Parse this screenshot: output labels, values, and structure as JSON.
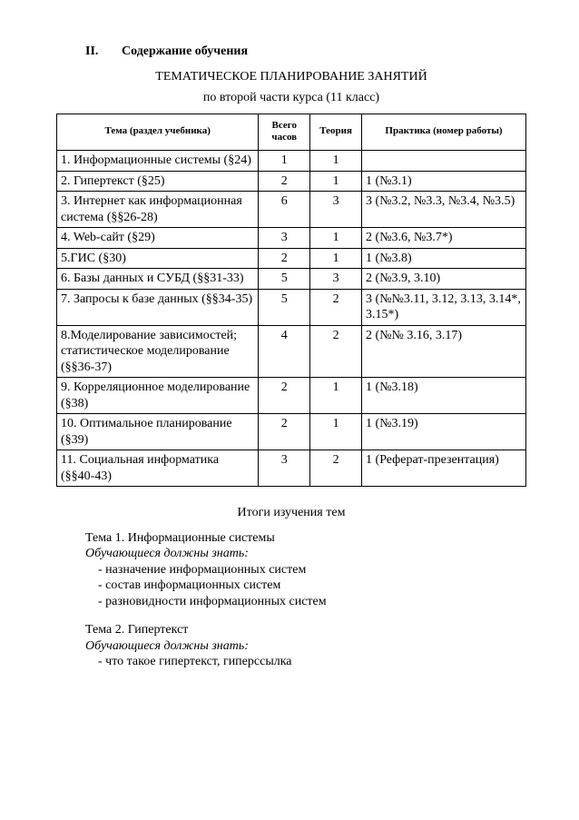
{
  "heading": {
    "num": "II.",
    "text": "Содержание обучения"
  },
  "title1": "ТЕМАТИЧЕСКОЕ ПЛАНИРОВАНИЕ ЗАНЯТИЙ",
  "title2": "по второй части курса (11 класс)",
  "table": {
    "headers": {
      "c1": "Тема (раздел учебника)",
      "c2": "Всего часов",
      "c3": "Теория",
      "c4": "Практика (номер работы)"
    },
    "rows": [
      {
        "c1": "1. Информационные системы (§24)",
        "c2": "1",
        "c3": "1",
        "c4": ""
      },
      {
        "c1": "2. Гипертекст (§25)",
        "c2": "2",
        "c3": "1",
        "c4": "1 (№3.1)"
      },
      {
        "c1": "3. Интернет как информационная система (§§26-28)",
        "c2": "6",
        "c3": "3",
        "c4": "3 (№3.2, №3.3, №3.4, №3.5)"
      },
      {
        "c1": "4. Web-сайт (§29)",
        "c2": "3",
        "c3": "1",
        "c4": "2 (№3.6, №3.7*)"
      },
      {
        "c1": "5.ГИС (§30)",
        "c2": "2",
        "c3": "1",
        "c4": "1 (№3.8)"
      },
      {
        "c1": "6. Базы данных и СУБД (§§31-33)",
        "c2": "5",
        "c3": "3",
        "c4": "2 (№3.9, 3.10)"
      },
      {
        "c1": "7. Запросы к базе данных (§§34-35)",
        "c2": "5",
        "c3": "2",
        "c4": "3 (№№3.11, 3.12, 3.13, 3.14*, 3.15*)"
      },
      {
        "c1": "8.Моделирование зависимостей; статистическое моделирование (§§36-37)",
        "c2": "4",
        "c3": "2",
        "c4": "2 (№№ 3.16, 3.17)"
      },
      {
        "c1": "9. Корреляционное моделирование (§38)",
        "c2": "2",
        "c3": "1",
        "c4": "1 (№3.18)"
      },
      {
        "c1": "10. Оптимальное планирование (§39)",
        "c2": "2",
        "c3": "1",
        "c4": "1 (№3.19)"
      },
      {
        "c1": "11. Социальная информатика (§§40-43)",
        "c2": "3",
        "c3": "2",
        "c4": "1 (Реферат-презентация)"
      }
    ]
  },
  "results_title": "Итоги изучения тем",
  "topics": [
    {
      "title": "Тема 1. Информационные системы",
      "know": "Обучающиеся должны знать:",
      "items": [
        "назначение информационных систем",
        "состав информационных систем",
        "разновидности информационных систем"
      ]
    },
    {
      "title": "Тема 2. Гипертекст",
      "know": "Обучающиеся должны знать:",
      "items": [
        "что такое гипертекст, гиперссылка"
      ]
    }
  ]
}
